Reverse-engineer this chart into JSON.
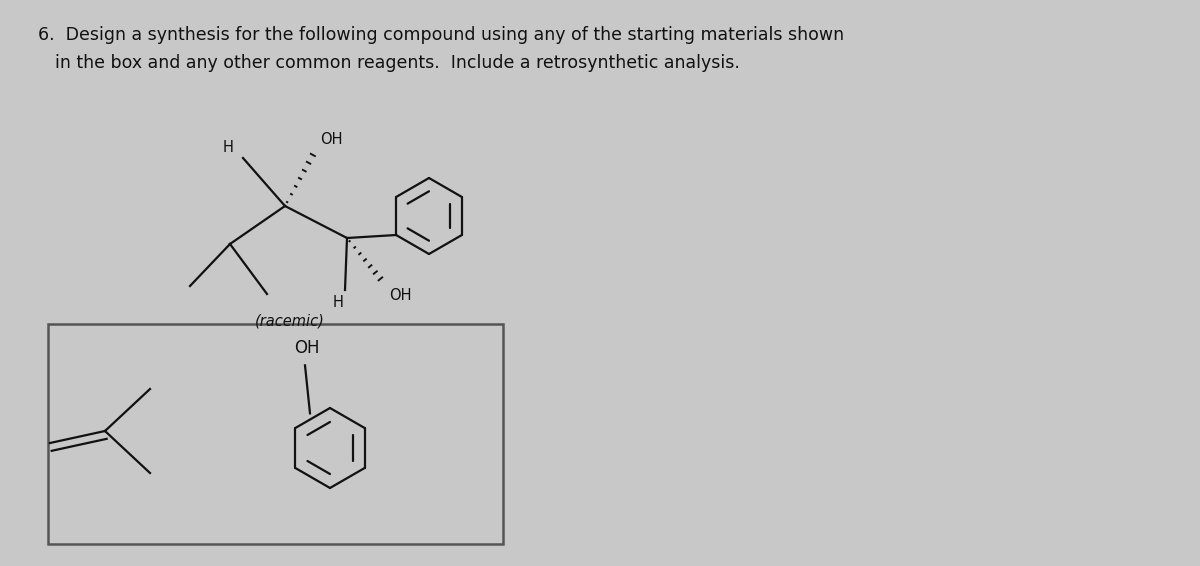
{
  "title_line1": "6.  Design a synthesis for the following compound using any of the starting materials shown",
  "title_line2": "    in the box and any other common reagents.  Include a retrosynthetic analysis.",
  "bg_color": "#c8c8c8",
  "text_color": "#111111",
  "title_fontsize": 12.5,
  "racemic_label": "(racemic)",
  "box_edge_color": "#555555"
}
